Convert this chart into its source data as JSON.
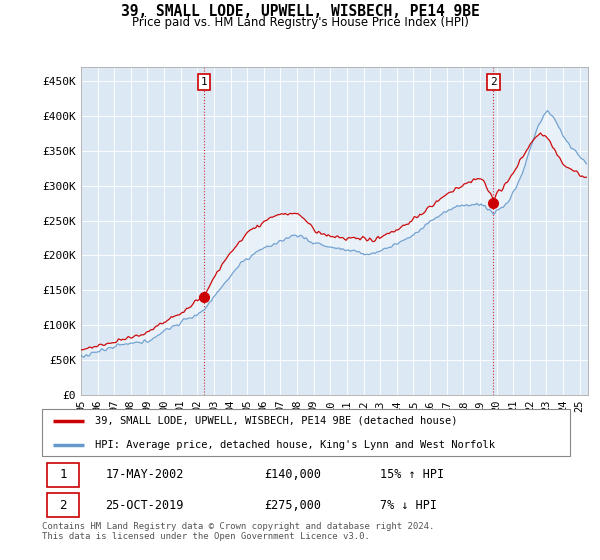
{
  "title": "39, SMALL LODE, UPWELL, WISBECH, PE14 9BE",
  "subtitle": "Price paid vs. HM Land Registry's House Price Index (HPI)",
  "ylabel_ticks": [
    "£0",
    "£50K",
    "£100K",
    "£150K",
    "£200K",
    "£250K",
    "£300K",
    "£350K",
    "£400K",
    "£450K"
  ],
  "ytick_values": [
    0,
    50000,
    100000,
    150000,
    200000,
    250000,
    300000,
    350000,
    400000,
    450000
  ],
  "ylim": [
    0,
    470000
  ],
  "legend_line1": "39, SMALL LODE, UPWELL, WISBECH, PE14 9BE (detached house)",
  "legend_line2": "HPI: Average price, detached house, King's Lynn and West Norfolk",
  "annotation1_label": "1",
  "annotation1_date": "17-MAY-2002",
  "annotation1_price": "£140,000",
  "annotation1_hpi": "15% ↑ HPI",
  "annotation2_label": "2",
  "annotation2_date": "25-OCT-2019",
  "annotation2_price": "£275,000",
  "annotation2_hpi": "7% ↓ HPI",
  "footnote1": "Contains HM Land Registry data © Crown copyright and database right 2024.",
  "footnote2": "This data is licensed under the Open Government Licence v3.0.",
  "red_color": "#cc0000",
  "blue_color": "#6699cc",
  "blue_fill": "#dce9f5",
  "marker1_x": 2002.38,
  "marker1_y": 140000,
  "marker2_x": 2019.81,
  "marker2_y": 275000,
  "vline1_x": 2002.38,
  "vline2_x": 2019.81,
  "xmin": 1995.0,
  "xmax": 2025.5
}
